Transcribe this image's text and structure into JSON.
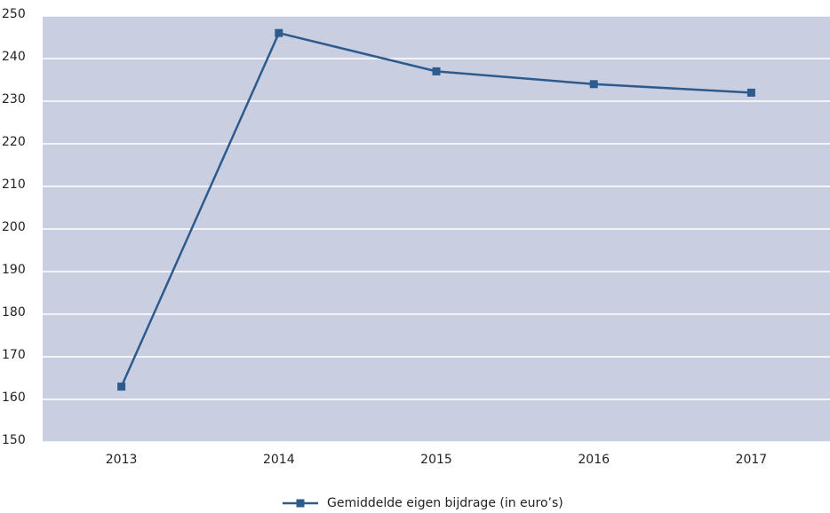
{
  "chart_data": {
    "type": "line",
    "categories": [
      "2013",
      "2014",
      "2015",
      "2016",
      "2017"
    ],
    "series": [
      {
        "name": "Gemiddelde eigen bijdrage (in euro’s)",
        "color": "#2d5b8e",
        "values": [
          163,
          246,
          237,
          234,
          232
        ]
      }
    ],
    "ylim": [
      150,
      250
    ],
    "yticks": [
      150,
      160,
      170,
      180,
      190,
      200,
      210,
      220,
      230,
      240,
      250
    ],
    "grid": true,
    "legend": "bottom",
    "background": "#c9cfe1"
  }
}
